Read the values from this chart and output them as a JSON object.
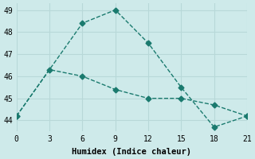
{
  "line1_x": [
    0,
    6,
    9,
    12,
    15,
    18,
    21
  ],
  "line1_y": [
    44.2,
    48.4,
    49.0,
    47.5,
    45.5,
    43.7,
    44.2
  ],
  "line2_x": [
    0,
    3,
    6,
    9,
    12,
    15,
    18,
    21
  ],
  "line2_y": [
    44.2,
    46.3,
    46.0,
    45.4,
    45.0,
    45.0,
    44.7,
    44.2
  ],
  "color": "#1a7a6e",
  "bg_color": "#ceeaea",
  "grid_color": "#b8d8d8",
  "xlabel": "Humidex (Indice chaleur)",
  "xlim": [
    0,
    21
  ],
  "ylim": [
    43.5,
    49.3
  ],
  "xticks": [
    0,
    3,
    6,
    9,
    12,
    15,
    18,
    21
  ],
  "yticks": [
    44,
    45,
    46,
    47,
    48,
    49
  ],
  "markersize": 3.5,
  "linewidth": 1.0,
  "linestyle": "--"
}
